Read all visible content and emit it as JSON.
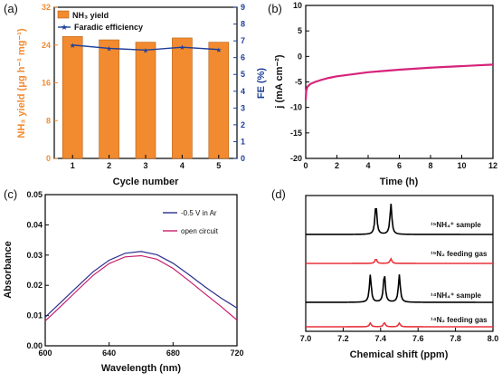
{
  "chart_data": [
    {
      "panel_label": "(a)",
      "type": "bar",
      "categories": [
        "1",
        "2",
        "3",
        "4",
        "5"
      ],
      "xlabel": "Cycle number",
      "ylabel_left": "NH₃ yield (μg h⁻¹ mg⁻¹)",
      "ylabel_right": "FE (%)",
      "ylim_left": [
        0,
        32
      ],
      "yticks_left": [
        "0",
        "8",
        "16",
        "24",
        "32"
      ],
      "ylim_right": [
        0,
        9
      ],
      "yticks_right": [
        "0",
        "1",
        "2",
        "3",
        "4",
        "5",
        "6",
        "7",
        "8",
        "9"
      ],
      "series": [
        {
          "name": "NH₃ yield",
          "type": "bar",
          "axis": "left",
          "color": "#f28b30",
          "values": [
            25.8,
            25.1,
            24.6,
            25.5,
            24.6
          ]
        },
        {
          "name": "Faradic efficiency",
          "type": "line",
          "axis": "right",
          "color": "#1f3f99",
          "values": [
            6.75,
            6.55,
            6.45,
            6.62,
            6.48
          ]
        }
      ],
      "legend": "top-left"
    },
    {
      "panel_label": "(b)",
      "type": "line",
      "xlabel": "Time (h)",
      "ylabel": "j (mA cm⁻²)",
      "xlim": [
        0,
        12
      ],
      "ylim": [
        -20,
        10
      ],
      "xticks": [
        "0",
        "2",
        "4",
        "6",
        "8",
        "10",
        "12"
      ],
      "yticks": [
        "-20",
        "-15",
        "-10",
        "-5",
        "0",
        "5",
        "10"
      ],
      "series": [
        {
          "color": "#d6237a",
          "x": [
            0,
            0.03,
            0.1,
            0.3,
            0.6,
            1,
            1.5,
            2,
            3,
            4,
            5,
            6,
            7,
            8,
            9,
            10,
            11,
            12
          ],
          "y": [
            -8.5,
            -6.8,
            -6.0,
            -5.4,
            -5.0,
            -4.6,
            -4.2,
            -3.9,
            -3.5,
            -3.1,
            -2.85,
            -2.6,
            -2.4,
            -2.2,
            -2.05,
            -1.9,
            -1.75,
            -1.6
          ]
        }
      ]
    },
    {
      "panel_label": "(c)",
      "type": "line",
      "xlabel": "Wavelength (nm)",
      "ylabel": "Absorbance",
      "xlim": [
        600,
        720
      ],
      "ylim": [
        0,
        0.05
      ],
      "xticks": [
        "600",
        "640",
        "680",
        "720"
      ],
      "yticks": [
        "0.00",
        "0.01",
        "0.02",
        "0.03",
        "0.04",
        "0.05"
      ],
      "series": [
        {
          "name": "-0.5 V in Ar",
          "color": "#2b2f8f",
          "x": [
            600,
            610,
            620,
            630,
            640,
            650,
            660,
            670,
            680,
            690,
            700,
            710,
            720
          ],
          "y": [
            0.0095,
            0.0145,
            0.0195,
            0.0245,
            0.0283,
            0.0306,
            0.0312,
            0.0301,
            0.0273,
            0.0235,
            0.0195,
            0.0158,
            0.0125
          ]
        },
        {
          "name": "open circuit",
          "color": "#c81e6e",
          "x": [
            600,
            610,
            620,
            630,
            640,
            650,
            660,
            670,
            680,
            690,
            700,
            710,
            720
          ],
          "y": [
            0.0082,
            0.0132,
            0.0183,
            0.0233,
            0.0272,
            0.0294,
            0.0298,
            0.0286,
            0.0256,
            0.0215,
            0.0172,
            0.013,
            0.0085
          ]
        }
      ],
      "legend": "top-right"
    },
    {
      "panel_label": "(d)",
      "type": "line",
      "xlabel": "Chemical shift (ppm)",
      "xlim": [
        7.0,
        8.0
      ],
      "xticks": [
        "7.0",
        "7.2",
        "7.4",
        "7.6",
        "7.8",
        "8.0"
      ],
      "series": [
        {
          "label": "¹⁵NH₄⁺ sample",
          "color": "#000000",
          "peaks": [
            7.375,
            7.455
          ],
          "heights": [
            1.0,
            1.0
          ]
        },
        {
          "label": "¹⁵N₂ feeding gas",
          "color": "#e8333b",
          "peaks": [
            7.375,
            7.455
          ],
          "heights": [
            0.15,
            0.15
          ]
        },
        {
          "label": "¹⁴NH₄⁺ sample",
          "color": "#000000",
          "peaks": [
            7.345,
            7.42,
            7.5
          ],
          "heights": [
            0.9,
            0.95,
            0.9
          ]
        },
        {
          "label": "¹⁴N₂ feeding gas",
          "color": "#e8333b",
          "peaks": [
            7.345,
            7.42,
            7.5
          ],
          "heights": [
            0.12,
            0.14,
            0.12
          ]
        }
      ]
    }
  ]
}
